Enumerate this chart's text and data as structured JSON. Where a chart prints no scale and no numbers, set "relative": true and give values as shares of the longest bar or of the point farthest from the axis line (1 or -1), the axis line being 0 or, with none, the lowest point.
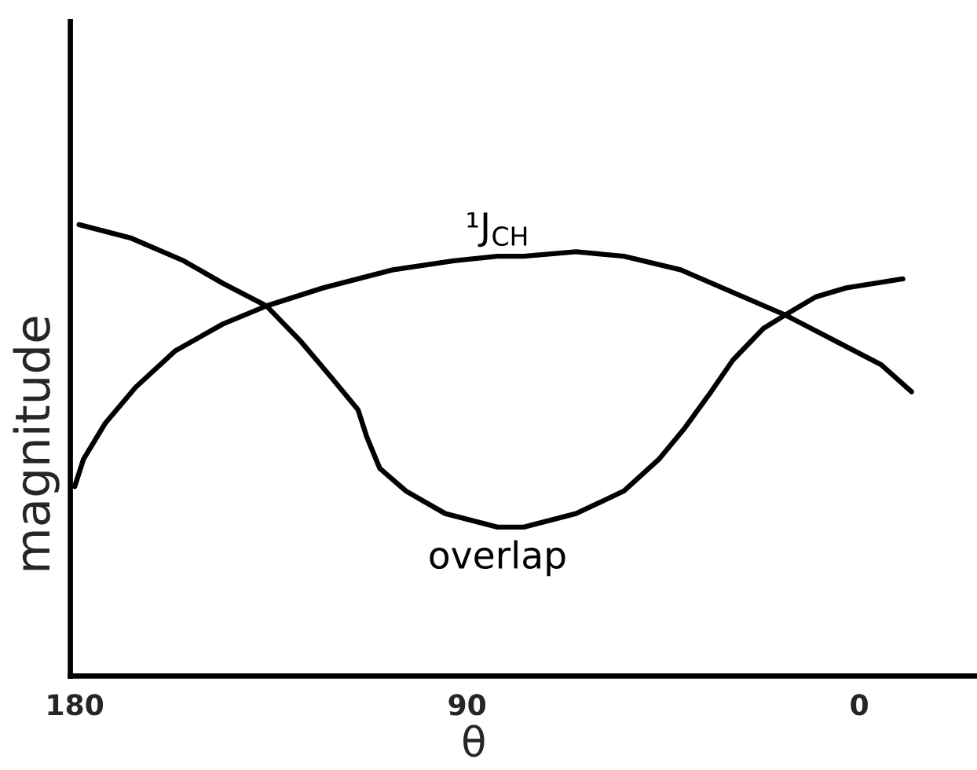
{
  "chart_data": {
    "type": "line",
    "relative": true,
    "xlabel": "θ",
    "ylabel": "magnitude",
    "xlim": [
      181,
      -27
    ],
    "xticks": [
      180,
      90,
      0
    ],
    "line_style": "solid",
    "series": [
      {
        "name": "¹J$_{CH}$",
        "color": "#000000",
        "x": [
          180,
          178,
          173,
          166,
          157,
          146,
          136,
          123,
          107,
          93,
          83,
          77,
          65,
          54,
          41,
          29,
          17,
          5,
          -5,
          -12
        ],
        "values": [
          0.42,
          0.48,
          0.56,
          0.64,
          0.72,
          0.78,
          0.82,
          0.86,
          0.9,
          0.92,
          0.93,
          0.93,
          0.94,
          0.93,
          0.9,
          0.85,
          0.8,
          0.74,
          0.69,
          0.63
        ]
      },
      {
        "name": "overlap",
        "color": "#000000",
        "x": [
          179,
          167,
          155,
          146,
          136,
          128,
          121,
          115,
          113,
          110,
          104,
          95,
          83,
          77,
          65,
          54,
          46,
          40,
          34,
          29,
          22,
          17,
          10,
          3,
          -10
        ],
        "values": [
          1.0,
          0.97,
          0.92,
          0.87,
          0.82,
          0.74,
          0.66,
          0.59,
          0.53,
          0.46,
          0.41,
          0.36,
          0.33,
          0.33,
          0.36,
          0.41,
          0.48,
          0.55,
          0.63,
          0.7,
          0.77,
          0.8,
          0.84,
          0.86,
          0.88
        ]
      }
    ]
  }
}
